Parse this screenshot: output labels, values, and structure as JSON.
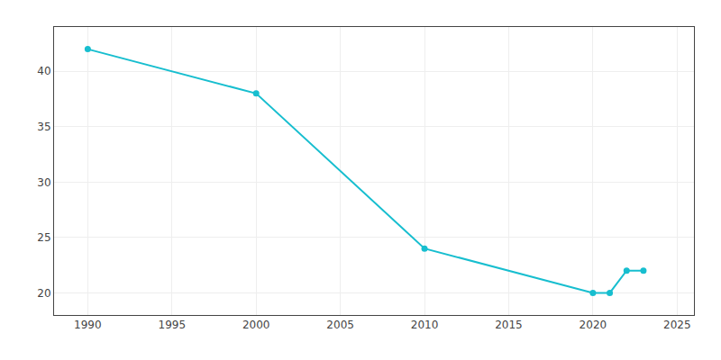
{
  "chart_data": {
    "type": "line",
    "x": [
      1990,
      2000,
      2010,
      2020,
      2021,
      2022,
      2023
    ],
    "values": [
      42,
      38,
      24,
      20,
      20,
      22,
      22
    ],
    "color": "#17becf",
    "marker": "circle",
    "xlim": [
      1988,
      2026
    ],
    "ylim": [
      18,
      44
    ],
    "xticks": [
      1990,
      1995,
      2000,
      2005,
      2010,
      2015,
      2020,
      2025
    ],
    "yticks": [
      20,
      25,
      30,
      35,
      40
    ],
    "grid": true
  }
}
